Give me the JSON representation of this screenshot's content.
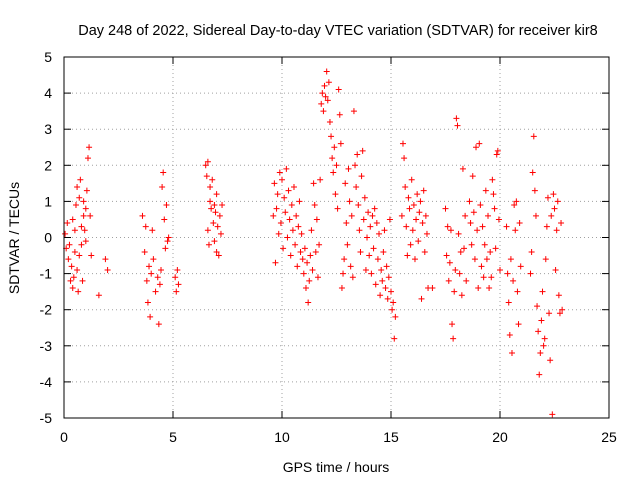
{
  "chart_data": {
    "type": "scatter",
    "title": "Day 248 of 2022, Sidereal Day-to-day VTEC variation (SDTVAR) for receiver kir8",
    "xlabel": "GPS time / hours",
    "ylabel": "SDTVAR / TECUs",
    "xlim": [
      0,
      25
    ],
    "ylim": [
      -5,
      5
    ],
    "xticks": [
      0,
      5,
      10,
      15,
      20,
      25
    ],
    "yticks": [
      -5,
      -4,
      -3,
      -2,
      -1,
      0,
      1,
      2,
      3,
      4,
      5
    ],
    "grid": true,
    "marker": "+",
    "marker_color": "#ff0000",
    "series": [
      {
        "name": "SDTVAR",
        "points": [
          [
            0.05,
            0.1
          ],
          [
            0.1,
            -0.3
          ],
          [
            0.15,
            0.4
          ],
          [
            0.2,
            -0.6
          ],
          [
            0.25,
            -0.2
          ],
          [
            0.3,
            -1.2
          ],
          [
            0.35,
            -0.8
          ],
          [
            0.4,
            0.5
          ],
          [
            0.45,
            -1.1
          ],
          [
            0.5,
            -0.4
          ],
          [
            0.55,
            0.9
          ],
          [
            0.6,
            1.4
          ],
          [
            0.65,
            -1.5
          ],
          [
            0.7,
            -0.5
          ],
          [
            0.75,
            1.6
          ],
          [
            0.8,
            0.3
          ],
          [
            0.85,
            -1.2
          ],
          [
            0.9,
            1.0
          ],
          [
            0.95,
            0.2
          ],
          [
            1.0,
            0.8
          ],
          [
            1.05,
            1.3
          ],
          [
            1.1,
            2.2
          ],
          [
            1.15,
            2.5
          ],
          [
            1.2,
            0.6
          ],
          [
            1.25,
            -0.5
          ],
          [
            0.6,
            -0.9
          ],
          [
            0.7,
            1.1
          ],
          [
            0.8,
            -0.2
          ],
          [
            0.9,
            0.6
          ],
          [
            1.0,
            -0.1
          ],
          [
            0.4,
            -1.4
          ],
          [
            0.5,
            0.2
          ],
          [
            1.6,
            -1.6
          ],
          [
            1.9,
            -0.6
          ],
          [
            2.0,
            -0.9
          ],
          [
            3.6,
            0.6
          ],
          [
            3.7,
            -0.4
          ],
          [
            3.75,
            0.3
          ],
          [
            3.8,
            -1.2
          ],
          [
            3.85,
            -1.8
          ],
          [
            3.9,
            -0.8
          ],
          [
            3.95,
            -2.2
          ],
          [
            4.0,
            -1.0
          ],
          [
            4.05,
            0.2
          ],
          [
            4.1,
            -0.6
          ],
          [
            4.2,
            -1.5
          ],
          [
            4.3,
            -1.1
          ],
          [
            4.35,
            -2.4
          ],
          [
            4.4,
            -1.3
          ],
          [
            4.45,
            -0.9
          ],
          [
            4.5,
            1.4
          ],
          [
            4.55,
            1.8
          ],
          [
            4.6,
            0.5
          ],
          [
            4.65,
            -0.3
          ],
          [
            4.7,
            0.9
          ],
          [
            4.75,
            -0.1
          ],
          [
            4.8,
            0.0
          ],
          [
            5.1,
            -1.1
          ],
          [
            5.15,
            -1.5
          ],
          [
            5.2,
            -0.9
          ],
          [
            5.25,
            -1.3
          ],
          [
            6.5,
            2.0
          ],
          [
            6.55,
            1.7
          ],
          [
            6.6,
            0.2
          ],
          [
            6.65,
            -0.2
          ],
          [
            6.7,
            1.4
          ],
          [
            6.75,
            0.8
          ],
          [
            6.8,
            1.6
          ],
          [
            6.85,
            0.4
          ],
          [
            6.9,
            -0.1
          ],
          [
            6.95,
            0.7
          ],
          [
            7.0,
            1.2
          ],
          [
            7.05,
            0.3
          ],
          [
            7.1,
            -0.5
          ],
          [
            7.15,
            0.6
          ],
          [
            7.2,
            0.1
          ],
          [
            7.25,
            0.9
          ],
          [
            6.6,
            2.1
          ],
          [
            6.7,
            1.0
          ],
          [
            6.9,
            0.9
          ],
          [
            7.0,
            -0.4
          ],
          [
            9.6,
            0.6
          ],
          [
            9.65,
            1.5
          ],
          [
            9.7,
            -0.7
          ],
          [
            9.75,
            0.8
          ],
          [
            9.8,
            1.2
          ],
          [
            9.85,
            0.1
          ],
          [
            9.9,
            1.8
          ],
          [
            9.95,
            0.4
          ],
          [
            10.0,
            1.6
          ],
          [
            10.05,
            -0.3
          ],
          [
            10.1,
            1.1
          ],
          [
            10.15,
            0.7
          ],
          [
            10.2,
            1.9
          ],
          [
            10.25,
            0.0
          ],
          [
            10.3,
            1.3
          ],
          [
            10.35,
            0.5
          ],
          [
            10.4,
            -0.5
          ],
          [
            10.45,
            0.9
          ],
          [
            10.5,
            0.2
          ],
          [
            10.55,
            1.4
          ],
          [
            10.6,
            -0.2
          ],
          [
            10.65,
            0.6
          ],
          [
            10.7,
            -0.8
          ],
          [
            10.75,
            0.3
          ],
          [
            10.8,
            1.0
          ],
          [
            10.85,
            -0.4
          ],
          [
            10.9,
            0.1
          ],
          [
            10.95,
            -0.6
          ],
          [
            11.0,
            -1.0
          ],
          [
            11.05,
            -0.3
          ],
          [
            11.1,
            -1.4
          ],
          [
            11.15,
            -0.7
          ],
          [
            11.2,
            -1.8
          ],
          [
            11.25,
            -1.2
          ],
          [
            11.3,
            -0.5
          ],
          [
            11.35,
            0.2
          ],
          [
            11.4,
            -0.9
          ],
          [
            11.45,
            1.5
          ],
          [
            11.5,
            0.9
          ],
          [
            11.55,
            -0.4
          ],
          [
            11.6,
            0.5
          ],
          [
            11.65,
            -1.1
          ],
          [
            11.7,
            -0.2
          ],
          [
            11.75,
            1.6
          ],
          [
            11.8,
            3.7
          ],
          [
            11.85,
            4.0
          ],
          [
            11.9,
            3.5
          ],
          [
            11.95,
            4.2
          ],
          [
            12.0,
            3.9
          ],
          [
            12.05,
            4.6
          ],
          [
            12.1,
            3.8
          ],
          [
            12.15,
            4.3
          ],
          [
            12.2,
            3.2
          ],
          [
            12.25,
            2.8
          ],
          [
            12.3,
            2.2
          ],
          [
            12.35,
            1.8
          ],
          [
            12.4,
            2.5
          ],
          [
            12.45,
            1.2
          ],
          [
            12.5,
            2.0
          ],
          [
            12.55,
            0.8
          ],
          [
            12.6,
            4.1
          ],
          [
            12.65,
            3.4
          ],
          [
            12.7,
            2.6
          ],
          [
            12.75,
            -1.4
          ],
          [
            12.8,
            -1.0
          ],
          [
            12.85,
            -0.6
          ],
          [
            12.9,
            1.5
          ],
          [
            12.95,
            0.4
          ],
          [
            13.0,
            -0.2
          ],
          [
            13.05,
            1.9
          ],
          [
            13.1,
            1.0
          ],
          [
            13.15,
            -0.8
          ],
          [
            13.2,
            0.6
          ],
          [
            13.25,
            -1.1
          ],
          [
            13.3,
            3.5
          ],
          [
            13.35,
            2.0
          ],
          [
            13.4,
            1.4
          ],
          [
            13.45,
            2.3
          ],
          [
            13.5,
            0.9
          ],
          [
            13.55,
            0.2
          ],
          [
            13.6,
            -0.4
          ],
          [
            13.65,
            1.7
          ],
          [
            13.7,
            2.4
          ],
          [
            13.75,
            0.5
          ],
          [
            13.8,
            1.1
          ],
          [
            13.85,
            -0.9
          ],
          [
            13.9,
            0.0
          ],
          [
            13.95,
            0.7
          ],
          [
            14.0,
            -0.5
          ],
          [
            14.05,
            0.3
          ],
          [
            14.1,
            -1.0
          ],
          [
            14.15,
            0.6
          ],
          [
            14.2,
            -0.3
          ],
          [
            14.25,
            0.8
          ],
          [
            14.3,
            -1.3
          ],
          [
            14.35,
            0.4
          ],
          [
            14.4,
            -0.6
          ],
          [
            14.45,
            0.1
          ],
          [
            14.5,
            -1.6
          ],
          [
            14.55,
            -0.9
          ],
          [
            14.6,
            -1.2
          ],
          [
            14.65,
            -0.4
          ],
          [
            14.7,
            0.2
          ],
          [
            14.75,
            -1.4
          ],
          [
            14.8,
            -0.8
          ],
          [
            14.85,
            -1.7
          ],
          [
            14.9,
            -1.1
          ],
          [
            14.95,
            0.5
          ],
          [
            15.0,
            -1.5
          ],
          [
            15.05,
            -2.0
          ],
          [
            15.1,
            -1.8
          ],
          [
            15.15,
            -2.8
          ],
          [
            15.2,
            -2.2
          ],
          [
            15.5,
            0.6
          ],
          [
            15.55,
            2.6
          ],
          [
            15.6,
            2.2
          ],
          [
            15.65,
            1.4
          ],
          [
            15.7,
            0.3
          ],
          [
            15.75,
            -0.5
          ],
          [
            15.8,
            1.1
          ],
          [
            15.85,
            0.8
          ],
          [
            15.9,
            -0.2
          ],
          [
            15.95,
            1.6
          ],
          [
            16.0,
            0.2
          ],
          [
            16.05,
            0.9
          ],
          [
            16.1,
            -0.6
          ],
          [
            16.15,
            0.5
          ],
          [
            16.2,
            1.2
          ],
          [
            16.25,
            -0.1
          ],
          [
            16.3,
            0.7
          ],
          [
            16.35,
            1.0
          ],
          [
            16.4,
            -1.7
          ],
          [
            16.45,
            0.4
          ],
          [
            16.5,
            1.3
          ],
          [
            16.55,
            -0.4
          ],
          [
            16.6,
            0.6
          ],
          [
            16.65,
            0.1
          ],
          [
            16.7,
            -1.4
          ],
          [
            16.9,
            -1.4
          ],
          [
            17.5,
            0.8
          ],
          [
            17.55,
            -0.5
          ],
          [
            17.6,
            0.3
          ],
          [
            17.65,
            -1.2
          ],
          [
            17.7,
            -0.7
          ],
          [
            17.75,
            0.2
          ],
          [
            17.8,
            -2.4
          ],
          [
            17.85,
            -2.8
          ],
          [
            17.9,
            -1.5
          ],
          [
            17.95,
            -0.9
          ],
          [
            18.0,
            3.3
          ],
          [
            18.05,
            3.1
          ],
          [
            18.1,
            0.1
          ],
          [
            18.15,
            -1.0
          ],
          [
            18.2,
            -0.4
          ],
          [
            18.25,
            -1.6
          ],
          [
            18.3,
            1.9
          ],
          [
            18.35,
            -0.3
          ],
          [
            18.4,
            0.6
          ],
          [
            18.45,
            -1.2
          ],
          [
            18.6,
            1.0
          ],
          [
            18.65,
            0.4
          ],
          [
            18.7,
            -0.2
          ],
          [
            18.75,
            1.7
          ],
          [
            18.8,
            0.7
          ],
          [
            18.85,
            -0.6
          ],
          [
            18.9,
            2.5
          ],
          [
            18.95,
            0.2
          ],
          [
            19.0,
            -1.4
          ],
          [
            19.05,
            2.6
          ],
          [
            19.1,
            0.9
          ],
          [
            19.15,
            -0.8
          ],
          [
            19.2,
            0.3
          ],
          [
            19.25,
            -1.1
          ],
          [
            19.3,
            -0.2
          ],
          [
            19.35,
            1.3
          ],
          [
            19.4,
            -0.6
          ],
          [
            19.45,
            0.6
          ],
          [
            19.5,
            -1.4
          ],
          [
            19.55,
            -0.4
          ],
          [
            19.6,
            -1.1
          ],
          [
            19.65,
            1.6
          ],
          [
            19.7,
            1.2
          ],
          [
            19.75,
            0.8
          ],
          [
            19.8,
            -0.3
          ],
          [
            19.85,
            2.3
          ],
          [
            19.9,
            2.4
          ],
          [
            19.95,
            0.5
          ],
          [
            20.0,
            -0.9
          ],
          [
            20.3,
            0.3
          ],
          [
            20.35,
            -1.0
          ],
          [
            20.4,
            -1.8
          ],
          [
            20.45,
            -2.7
          ],
          [
            20.5,
            -0.6
          ],
          [
            20.55,
            -3.2
          ],
          [
            20.6,
            -1.2
          ],
          [
            20.65,
            0.9
          ],
          [
            20.7,
            0.2
          ],
          [
            20.75,
            1.0
          ],
          [
            20.8,
            -1.5
          ],
          [
            20.85,
            -2.4
          ],
          [
            20.9,
            0.4
          ],
          [
            20.95,
            -0.8
          ],
          [
            21.4,
            -1.0
          ],
          [
            21.45,
            -0.4
          ],
          [
            21.5,
            1.8
          ],
          [
            21.55,
            2.8
          ],
          [
            21.6,
            1.3
          ],
          [
            21.65,
            0.6
          ],
          [
            21.7,
            -1.9
          ],
          [
            21.75,
            -2.6
          ],
          [
            21.8,
            -3.8
          ],
          [
            21.85,
            -3.2
          ],
          [
            21.9,
            -2.3
          ],
          [
            21.95,
            -1.5
          ],
          [
            22.0,
            -3.0
          ],
          [
            22.05,
            -2.8
          ],
          [
            22.1,
            -0.6
          ],
          [
            22.15,
            0.3
          ],
          [
            22.2,
            1.1
          ],
          [
            22.25,
            -2.1
          ],
          [
            22.3,
            -3.4
          ],
          [
            22.35,
            0.6
          ],
          [
            22.4,
            -4.9
          ],
          [
            22.45,
            1.2
          ],
          [
            22.5,
            0.8
          ],
          [
            22.55,
            -0.9
          ],
          [
            22.6,
            0.2
          ],
          [
            22.65,
            1.0
          ],
          [
            22.7,
            -1.6
          ],
          [
            22.75,
            -2.1
          ],
          [
            22.8,
            0.4
          ],
          [
            22.85,
            -2.0
          ]
        ]
      }
    ]
  }
}
